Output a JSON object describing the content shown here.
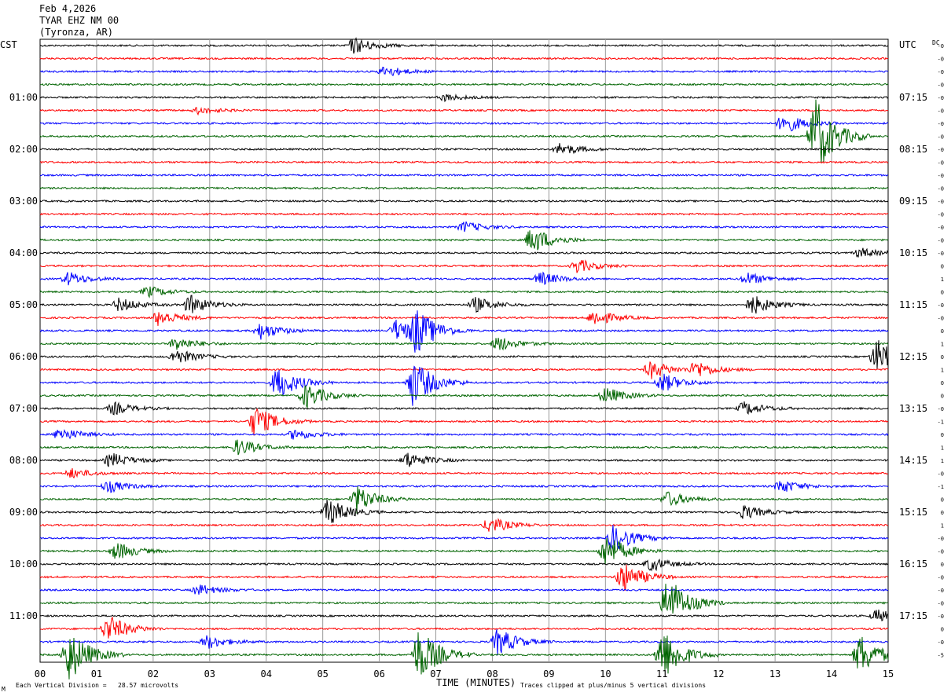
{
  "header": {
    "date": "Feb 4,2026",
    "station": "TYAR EHZ NM 00",
    "location": "(Tyronza, AR)"
  },
  "labels": {
    "left_tz": "CST",
    "right_tz": "UTC",
    "dc": "DC",
    "footer_left": "Each Vertical Division =   28.57 microvolts",
    "footer_center": "TIME (MINUTES)",
    "footer_right": "Traces clipped at plus/minus 5 vertical divisions",
    "corner_mark": "M"
  },
  "chart_data": {
    "type": "line",
    "title": "TYAR EHZ NM 00",
    "xlabel": "TIME (MINUTES)",
    "xlim": [
      0,
      15
    ],
    "x_ticks": [
      "00",
      "01",
      "02",
      "03",
      "04",
      "05",
      "06",
      "07",
      "08",
      "09",
      "10",
      "11",
      "12",
      "13",
      "14",
      "15"
    ],
    "trace_minutes": 15,
    "trace_count": 48,
    "trace_colors": [
      "#000000",
      "#ff0000",
      "#0000ff",
      "#006400"
    ],
    "left_time_labels": [
      "01:00",
      "02:00",
      "03:00",
      "04:00",
      "05:00",
      "06:00",
      "07:00",
      "08:00",
      "09:00",
      "10:00",
      "11:00"
    ],
    "right_time_labels": [
      "07:15",
      "08:15",
      "09:15",
      "10:15",
      "11:15",
      "12:15",
      "13:15",
      "14:15",
      "15:15",
      "16:15",
      "17:15"
    ],
    "dc_offsets": [
      "-0",
      "-0",
      "-0",
      "-0",
      "-0",
      "-0",
      "-0",
      "-0",
      "-0",
      "-0",
      "-0",
      "-0",
      "-0",
      "-0",
      "-0",
      "-0",
      "-0",
      "0",
      "1",
      "0",
      "-0",
      "-0",
      "0",
      "1",
      "0",
      "1",
      "0",
      "0",
      "-0",
      "-1",
      "0",
      "1",
      "1",
      "-0",
      "-1",
      "0",
      "0",
      "1",
      "-0",
      "-0",
      "0",
      "-0",
      "-0",
      "-0",
      "-0",
      "0",
      "-0",
      "-5"
    ],
    "events": [
      {
        "trace": 0,
        "minute": 5.55,
        "amp": 1.2
      },
      {
        "trace": 2,
        "minute": 6.1,
        "amp": 0.8
      },
      {
        "trace": 4,
        "minute": 7.15,
        "amp": 0.5
      },
      {
        "trace": 5,
        "minute": 2.8,
        "amp": 0.5
      },
      {
        "trace": 6,
        "minute": 13.15,
        "amp": 1.5
      },
      {
        "trace": 7,
        "minute": 13.7,
        "amp": 6
      },
      {
        "trace": 8,
        "minute": 9.2,
        "amp": 0.9
      },
      {
        "trace": 14,
        "minute": 7.5,
        "amp": 0.8
      },
      {
        "trace": 15,
        "minute": 8.7,
        "amp": 2
      },
      {
        "trace": 16,
        "minute": 14.5,
        "amp": 0.7
      },
      {
        "trace": 17,
        "minute": 9.5,
        "amp": 1
      },
      {
        "trace": 18,
        "minute": 0.5,
        "amp": 1
      },
      {
        "trace": 18,
        "minute": 8.85,
        "amp": 1
      },
      {
        "trace": 18,
        "minute": 12.5,
        "amp": 0.9
      },
      {
        "trace": 19,
        "minute": 1.9,
        "amp": 0.8
      },
      {
        "trace": 20,
        "minute": 1.4,
        "amp": 1
      },
      {
        "trace": 20,
        "minute": 2.65,
        "amp": 1.4
      },
      {
        "trace": 20,
        "minute": 7.7,
        "amp": 1.1
      },
      {
        "trace": 20,
        "minute": 12.6,
        "amp": 1.4
      },
      {
        "trace": 21,
        "minute": 2.1,
        "amp": 1.2
      },
      {
        "trace": 21,
        "minute": 9.8,
        "amp": 1.2
      },
      {
        "trace": 22,
        "minute": 3.9,
        "amp": 1.2
      },
      {
        "trace": 22,
        "minute": 6.3,
        "amp": 1.6
      },
      {
        "trace": 22,
        "minute": 6.65,
        "amp": 3
      },
      {
        "trace": 23,
        "minute": 2.4,
        "amp": 1
      },
      {
        "trace": 23,
        "minute": 8.1,
        "amp": 1.1
      },
      {
        "trace": 24,
        "minute": 2.4,
        "amp": 1.1
      },
      {
        "trace": 24,
        "minute": 14.8,
        "amp": 2.5
      },
      {
        "trace": 25,
        "minute": 10.8,
        "amp": 1.3
      },
      {
        "trace": 25,
        "minute": 11.6,
        "amp": 1.2
      },
      {
        "trace": 26,
        "minute": 4.2,
        "amp": 2.4
      },
      {
        "trace": 26,
        "minute": 6.6,
        "amp": 3.5
      },
      {
        "trace": 26,
        "minute": 11.0,
        "amp": 1.4
      },
      {
        "trace": 27,
        "minute": 4.7,
        "amp": 1.8
      },
      {
        "trace": 27,
        "minute": 10.0,
        "amp": 1.2
      },
      {
        "trace": 28,
        "minute": 1.3,
        "amp": 0.9
      },
      {
        "trace": 28,
        "minute": 12.45,
        "amp": 1
      },
      {
        "trace": 29,
        "minute": 3.8,
        "amp": 2.3
      },
      {
        "trace": 30,
        "minute": 0.35,
        "amp": 1
      },
      {
        "trace": 30,
        "minute": 4.5,
        "amp": 0.8
      },
      {
        "trace": 31,
        "minute": 3.5,
        "amp": 1.2
      },
      {
        "trace": 32,
        "minute": 1.25,
        "amp": 1.1
      },
      {
        "trace": 32,
        "minute": 6.5,
        "amp": 1.2
      },
      {
        "trace": 33,
        "minute": 0.55,
        "amp": 0.7
      },
      {
        "trace": 34,
        "minute": 1.2,
        "amp": 0.9
      },
      {
        "trace": 34,
        "minute": 13.1,
        "amp": 1
      },
      {
        "trace": 35,
        "minute": 5.6,
        "amp": 2
      },
      {
        "trace": 35,
        "minute": 11.1,
        "amp": 1.1
      },
      {
        "trace": 36,
        "minute": 5.1,
        "amp": 2
      },
      {
        "trace": 36,
        "minute": 12.45,
        "amp": 1
      },
      {
        "trace": 37,
        "minute": 7.95,
        "amp": 1.2
      },
      {
        "trace": 38,
        "minute": 10.15,
        "amp": 2
      },
      {
        "trace": 39,
        "minute": 1.35,
        "amp": 1.3
      },
      {
        "trace": 39,
        "minute": 10.0,
        "amp": 2.5
      },
      {
        "trace": 40,
        "minute": 10.8,
        "amp": 1
      },
      {
        "trace": 41,
        "minute": 10.3,
        "amp": 2.2
      },
      {
        "trace": 42,
        "minute": 2.8,
        "amp": 0.8
      },
      {
        "trace": 43,
        "minute": 11.1,
        "amp": 4
      },
      {
        "trace": 44,
        "minute": 14.8,
        "amp": 0.9
      },
      {
        "trace": 45,
        "minute": 1.2,
        "amp": 2
      },
      {
        "trace": 46,
        "minute": 2.95,
        "amp": 1
      },
      {
        "trace": 46,
        "minute": 8.1,
        "amp": 2
      },
      {
        "trace": 47,
        "minute": 0.5,
        "amp": 4
      },
      {
        "trace": 47,
        "minute": 6.7,
        "amp": 4
      },
      {
        "trace": 47,
        "minute": 11.0,
        "amp": 4
      },
      {
        "trace": 47,
        "minute": 14.5,
        "amp": 3
      }
    ]
  }
}
